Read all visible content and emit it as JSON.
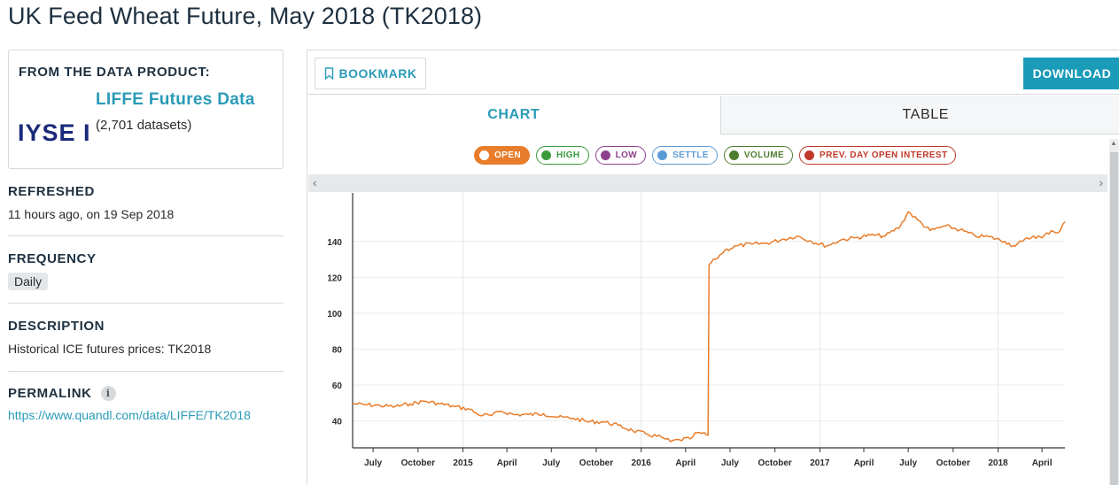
{
  "page": {
    "title": "UK Feed Wheat Future, May 2018 (TK2018)"
  },
  "product": {
    "heading": "FROM THE DATA PRODUCT:",
    "logo_text": "IYSE I",
    "name": "LIFFE Futures Data",
    "count": "(2,701 datasets)"
  },
  "refreshed": {
    "label": "REFRESHED",
    "value": "11 hours ago, on 19 Sep 2018"
  },
  "frequency": {
    "label": "FREQUENCY",
    "value": "Daily"
  },
  "description": {
    "label": "DESCRIPTION",
    "value": "Historical ICE futures prices: TK2018"
  },
  "permalink": {
    "label": "PERMALINK",
    "info_icon": "i",
    "url": "https://www.quandl.com/data/LIFFE/TK2018"
  },
  "toolbar": {
    "bookmark_label": "BOOKMARK",
    "bookmark_icon": "bookmark-icon",
    "download_label": "DOWNLOAD"
  },
  "tabs": [
    {
      "label": "CHART",
      "active": true
    },
    {
      "label": "TABLE",
      "active": false
    }
  ],
  "legend": [
    {
      "label": "OPEN",
      "color": "#e87d2b",
      "active": true
    },
    {
      "label": "HIGH",
      "color": "#3a9a3e",
      "active": false
    },
    {
      "label": "LOW",
      "color": "#8e3f8c",
      "active": false
    },
    {
      "label": "SETTLE",
      "color": "#5b9bd5",
      "active": false
    },
    {
      "label": "VOLUME",
      "color": "#4f7d2f",
      "active": false
    },
    {
      "label": "PREV. DAY OPEN INTEREST",
      "color": "#c0392b",
      "active": false
    }
  ],
  "chart_data": {
    "type": "line",
    "title": "",
    "xlabel": "",
    "ylabel": "",
    "ylim": [
      25,
      167
    ],
    "xlim": [
      "2014-05-20",
      "2018-05-18"
    ],
    "yticks": [
      40,
      60,
      80,
      100,
      120,
      140
    ],
    "xticks": [
      {
        "label": "July",
        "date": "2014-07-01"
      },
      {
        "label": "October",
        "date": "2014-10-01"
      },
      {
        "label": "2015",
        "date": "2015-01-01"
      },
      {
        "label": "April",
        "date": "2015-04-01"
      },
      {
        "label": "July",
        "date": "2015-07-01"
      },
      {
        "label": "October",
        "date": "2015-10-01"
      },
      {
        "label": "2016",
        "date": "2016-01-01"
      },
      {
        "label": "April",
        "date": "2016-04-01"
      },
      {
        "label": "July",
        "date": "2016-07-01"
      },
      {
        "label": "October",
        "date": "2016-10-01"
      },
      {
        "label": "2017",
        "date": "2017-01-01"
      },
      {
        "label": "April",
        "date": "2017-04-01"
      },
      {
        "label": "July",
        "date": "2017-07-01"
      },
      {
        "label": "October",
        "date": "2017-10-01"
      },
      {
        "label": "2018",
        "date": "2018-01-01"
      },
      {
        "label": "April",
        "date": "2018-04-01"
      }
    ],
    "grid": true,
    "series": [
      {
        "name": "OPEN",
        "color": "#e87d2b",
        "points": [
          [
            "2014-05-20",
            49.5
          ],
          [
            "2014-06-15",
            49.0
          ],
          [
            "2014-07-15",
            48.5
          ],
          [
            "2014-08-15",
            48.0
          ],
          [
            "2014-09-15",
            49.5
          ],
          [
            "2014-10-15",
            51.0
          ],
          [
            "2014-11-15",
            49.5
          ],
          [
            "2014-12-15",
            48.0
          ],
          [
            "2015-01-15",
            46.5
          ],
          [
            "2015-02-01",
            43.5
          ],
          [
            "2015-03-01",
            43.0
          ],
          [
            "2015-03-20",
            45.5
          ],
          [
            "2015-04-15",
            43.5
          ],
          [
            "2015-05-15",
            43.5
          ],
          [
            "2015-06-15",
            44.0
          ],
          [
            "2015-07-15",
            42.0
          ],
          [
            "2015-08-15",
            41.5
          ],
          [
            "2015-09-15",
            39.5
          ],
          [
            "2015-10-15",
            39.5
          ],
          [
            "2015-11-15",
            37.5
          ],
          [
            "2015-12-15",
            34.5
          ],
          [
            "2016-01-15",
            32.5
          ],
          [
            "2016-02-15",
            30.5
          ],
          [
            "2016-03-01",
            28.5
          ],
          [
            "2016-03-20",
            29.5
          ],
          [
            "2016-04-10",
            30.0
          ],
          [
            "2016-04-25",
            33.5
          ],
          [
            "2016-05-05",
            33.0
          ],
          [
            "2016-05-17",
            32.0
          ],
          [
            "2016-05-19",
            127.0
          ],
          [
            "2016-06-01",
            130.0
          ],
          [
            "2016-06-20",
            135.0
          ],
          [
            "2016-07-15",
            137.5
          ],
          [
            "2016-08-15",
            138.5
          ],
          [
            "2016-09-15",
            139.0
          ],
          [
            "2016-10-15",
            141.0
          ],
          [
            "2016-11-15",
            143.0
          ],
          [
            "2016-12-15",
            140.0
          ],
          [
            "2017-01-15",
            137.5
          ],
          [
            "2017-02-15",
            141.0
          ],
          [
            "2017-03-15",
            142.0
          ],
          [
            "2017-04-15",
            143.5
          ],
          [
            "2017-05-15",
            143.0
          ],
          [
            "2017-06-15",
            148.5
          ],
          [
            "2017-07-01",
            156.5
          ],
          [
            "2017-07-20",
            152.0
          ],
          [
            "2017-08-15",
            146.0
          ],
          [
            "2017-09-15",
            148.5
          ],
          [
            "2017-10-15",
            146.5
          ],
          [
            "2017-11-15",
            143.0
          ],
          [
            "2017-12-15",
            142.5
          ],
          [
            "2018-01-15",
            140.0
          ],
          [
            "2018-02-01",
            137.5
          ],
          [
            "2018-02-20",
            140.0
          ],
          [
            "2018-03-15",
            143.0
          ],
          [
            "2018-04-01",
            142.0
          ],
          [
            "2018-04-20",
            146.0
          ],
          [
            "2018-05-05",
            145.0
          ],
          [
            "2018-05-18",
            151.0
          ]
        ]
      }
    ]
  }
}
